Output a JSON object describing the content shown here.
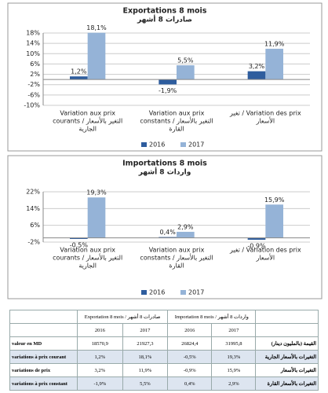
{
  "chart_data": [
    {
      "type": "bar",
      "title": "Exportations 8 mois",
      "subtitle": "صادرات 8 أشهر",
      "categories": [
        [
          "Variation aux prix",
          "courants / التغير بالأسعار",
          "الجارية"
        ],
        [
          "Variation aux prix",
          "constants / التغير بالأسعار",
          "القارة"
        ],
        [
          "تغير / Variation des prix",
          "الأسعار"
        ]
      ],
      "series": [
        {
          "name": "2016",
          "color": "#2e5d9e",
          "values": [
            1.2,
            -1.9,
            3.2
          ],
          "value_labels": [
            "1,2%",
            "-1,9%",
            "3,2%"
          ]
        },
        {
          "name": "2017",
          "color": "#95b3d7",
          "values": [
            18.1,
            5.5,
            11.9
          ],
          "value_labels": [
            "18,1%",
            "5,5%",
            "11,9%"
          ]
        }
      ],
      "ylim": [
        -10,
        18
      ],
      "yticks": [
        {
          "value": 18,
          "label": "18%"
        },
        {
          "value": 14,
          "label": "14%"
        },
        {
          "value": 10,
          "label": "10%"
        },
        {
          "value": 6,
          "label": "6%"
        },
        {
          "value": 2,
          "label": "2%"
        },
        {
          "value": -2,
          "label": "-2%"
        },
        {
          "value": -6,
          "label": "-6%"
        },
        {
          "value": -10,
          "label": "-10%"
        }
      ],
      "grid": true,
      "legend": "bottom"
    },
    {
      "type": "bar",
      "title": "Importations 8 mois",
      "subtitle": "واردات 8 أشهر",
      "categories": [
        [
          "Variation aux prix",
          "courants / التغير بالأسعار",
          "الجارية"
        ],
        [
          "Variation aux prix",
          "constants / التغير بالأسعار",
          "القارة"
        ],
        [
          "تغير / Variation des prix",
          "الأسعار"
        ]
      ],
      "series": [
        {
          "name": "2016",
          "color": "#2e5d9e",
          "values": [
            -0.5,
            0.4,
            -0.9
          ],
          "value_labels": [
            "-0,5%",
            "0,4%",
            "-0,9%"
          ]
        },
        {
          "name": "2017",
          "color": "#95b3d7",
          "values": [
            19.3,
            2.9,
            15.9
          ],
          "value_labels": [
            "19,3%",
            "2,9%",
            "15,9%"
          ]
        }
      ],
      "ylim": [
        -2,
        22
      ],
      "yticks": [
        {
          "value": 22,
          "label": "22%"
        },
        {
          "value": 14,
          "label": "14%"
        },
        {
          "value": 6,
          "label": "6%"
        },
        {
          "value": -2,
          "label": "-2%"
        }
      ],
      "grid": true,
      "legend": "bottom"
    }
  ],
  "table": {
    "header": [
      "Exportation 8 mois / صادرات 8 أشهر",
      "Importation 8 mois / واردات 8 أشهر"
    ],
    "years": [
      "2016",
      "2017",
      "2016",
      "2017"
    ],
    "rows": [
      [
        "valeur en MD",
        "18570,9",
        "21927,3",
        "26824,4",
        "31995,8",
        "القيمة (بالمليون دينار)"
      ],
      [
        "variations à prix courant",
        "1,2%",
        "18,1%",
        "-0,5%",
        "19,3%",
        "التغيرات بالأسعار الجارية"
      ],
      [
        "variations de prix",
        "3,2%",
        "11,9%",
        "-0,9%",
        "15,9%",
        "التغيرات بالأسعار"
      ],
      [
        "variations à prix constant",
        "-1,9%",
        "5,5%",
        "0,4%",
        "2,9%",
        "التغيرات بالأسعار القارة"
      ]
    ]
  }
}
